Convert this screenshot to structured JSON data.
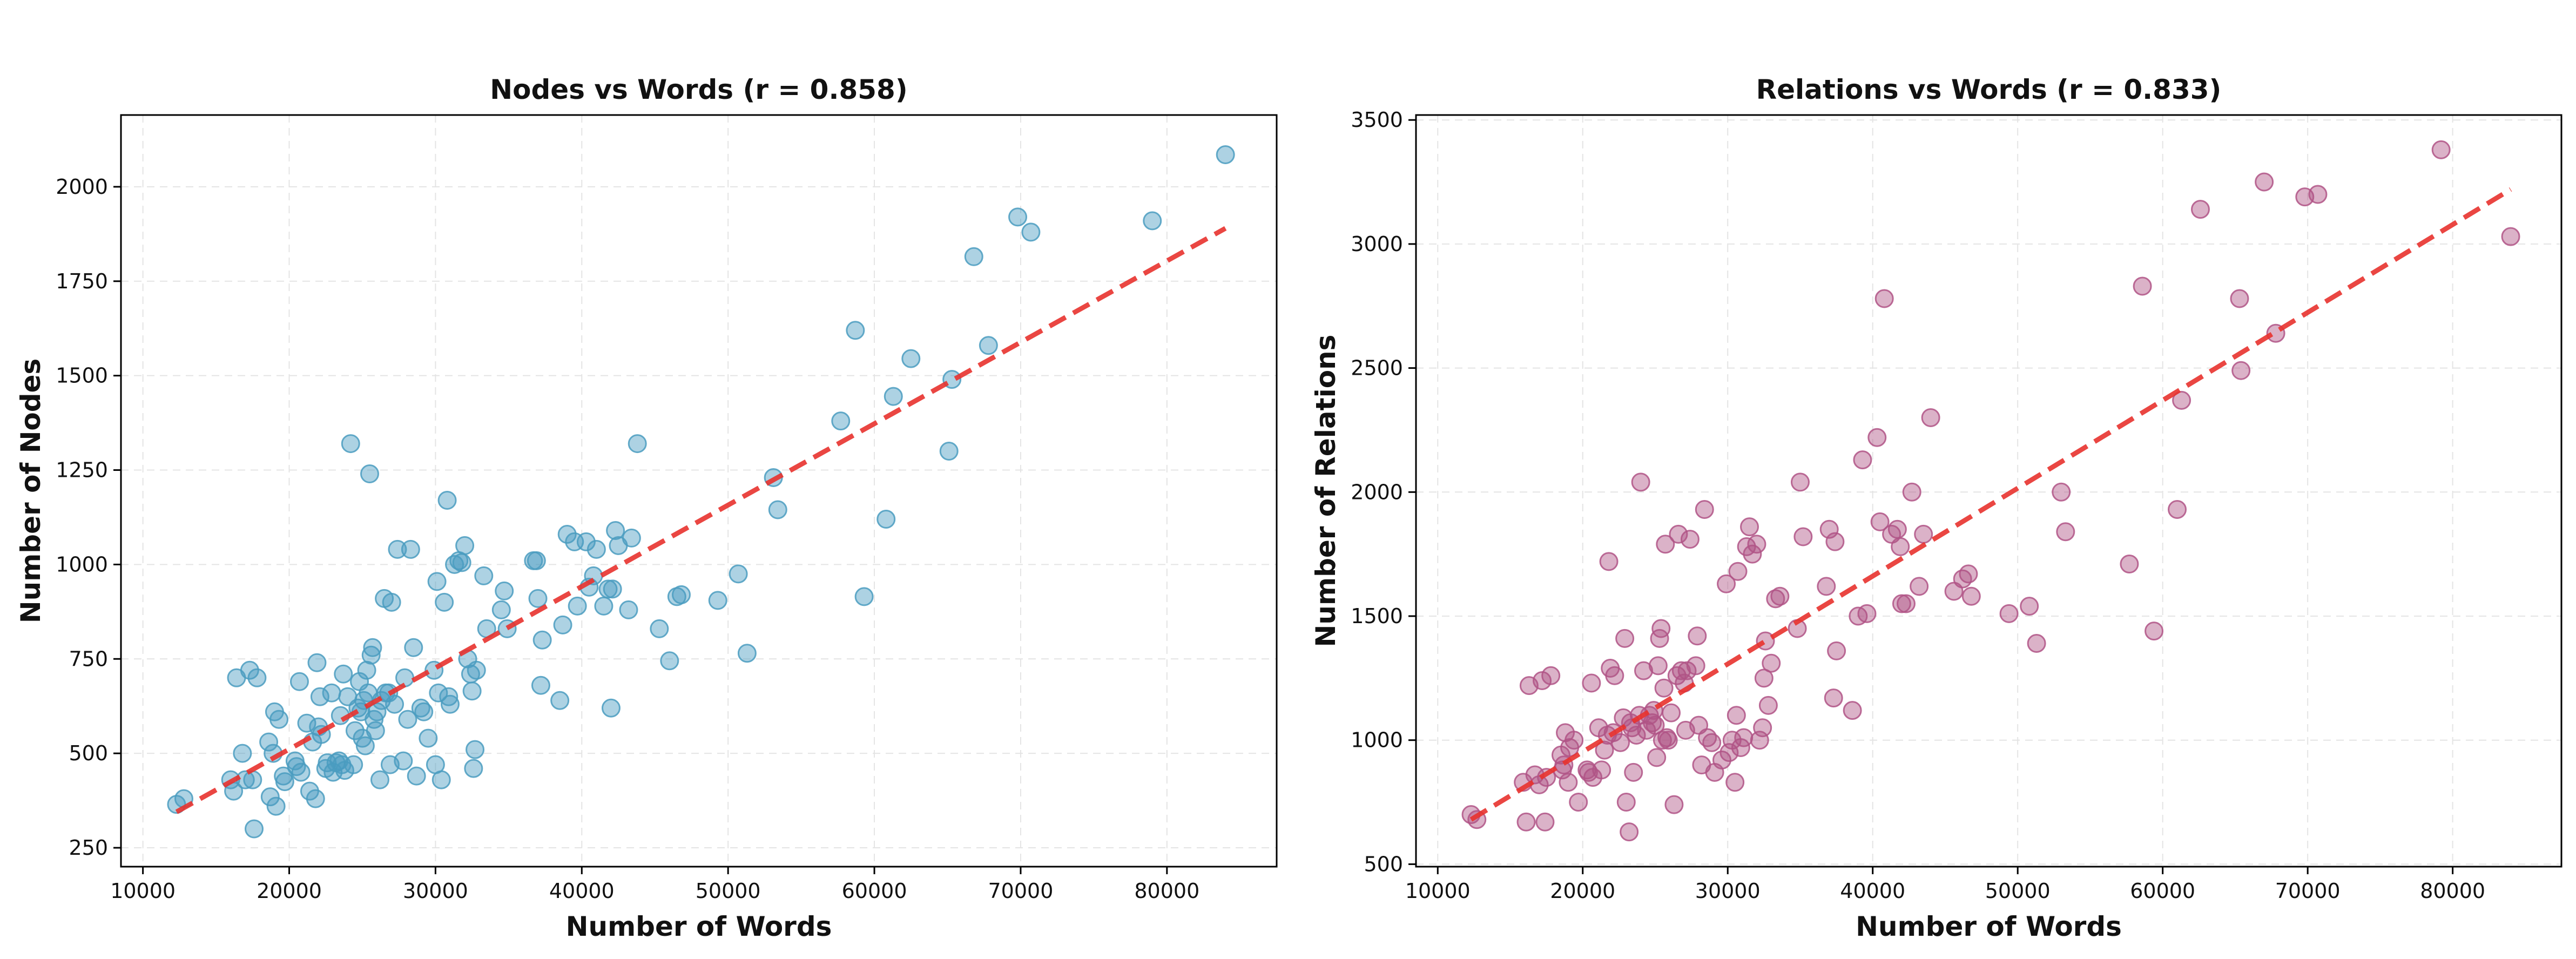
{
  "colors": {
    "nodes_point": "#4a9cc0",
    "relations_point": "#b05486",
    "trend": "#e8322e"
  },
  "chart_data": [
    {
      "type": "scatter",
      "id": "nodes",
      "title": "Nodes vs Words (r = 0.858)",
      "xlabel": "Number of Words",
      "ylabel": "Number of Nodes",
      "xlim": [
        8500,
        87500
      ],
      "ylim": [
        200,
        2190
      ],
      "xticks": [
        10000,
        20000,
        30000,
        40000,
        50000,
        60000,
        70000,
        80000
      ],
      "yticks": [
        250,
        500,
        750,
        1000,
        1250,
        1500,
        1750,
        2000
      ],
      "xtick_labels": [
        "10000",
        "20000",
        "30000",
        "40000",
        "50000",
        "60000",
        "70000",
        "80000"
      ],
      "ytick_labels": [
        "250",
        "500",
        "750",
        "1000",
        "1250",
        "1500",
        "1750",
        "2000"
      ],
      "grid": true,
      "trendline": [
        [
          12300,
          345
        ],
        [
          84000,
          1890
        ]
      ],
      "points": [
        [
          12300,
          365
        ],
        [
          12800,
          380
        ],
        [
          16000,
          430
        ],
        [
          16200,
          400
        ],
        [
          16400,
          700
        ],
        [
          16800,
          500
        ],
        [
          17000,
          430
        ],
        [
          17300,
          720
        ],
        [
          17600,
          300
        ],
        [
          17800,
          700
        ],
        [
          17500,
          430
        ],
        [
          18600,
          530
        ],
        [
          18700,
          385
        ],
        [
          18900,
          500
        ],
        [
          19000,
          610
        ],
        [
          19100,
          360
        ],
        [
          19300,
          590
        ],
        [
          19600,
          440
        ],
        [
          19700,
          425
        ],
        [
          20400,
          480
        ],
        [
          20500,
          465
        ],
        [
          20700,
          690
        ],
        [
          20800,
          450
        ],
        [
          21200,
          580
        ],
        [
          21400,
          400
        ],
        [
          21600,
          530
        ],
        [
          21800,
          380
        ],
        [
          21900,
          740
        ],
        [
          22000,
          570
        ],
        [
          22100,
          650
        ],
        [
          22200,
          550
        ],
        [
          22500,
          460
        ],
        [
          22600,
          475
        ],
        [
          22900,
          660
        ],
        [
          23000,
          450
        ],
        [
          23200,
          475
        ],
        [
          23400,
          480
        ],
        [
          23500,
          600
        ],
        [
          23600,
          470
        ],
        [
          23700,
          710
        ],
        [
          23800,
          455
        ],
        [
          24000,
          650
        ],
        [
          24200,
          1320
        ],
        [
          24400,
          470
        ],
        [
          24500,
          560
        ],
        [
          24700,
          620
        ],
        [
          24800,
          690
        ],
        [
          24900,
          610
        ],
        [
          25000,
          540
        ],
        [
          25100,
          640
        ],
        [
          25200,
          520
        ],
        [
          25300,
          720
        ],
        [
          25400,
          660
        ],
        [
          25500,
          1240
        ],
        [
          25600,
          760
        ],
        [
          25700,
          780
        ],
        [
          25800,
          590
        ],
        [
          25900,
          560
        ],
        [
          26000,
          610
        ],
        [
          26200,
          430
        ],
        [
          26300,
          640
        ],
        [
          26500,
          910
        ],
        [
          26600,
          660
        ],
        [
          26800,
          660
        ],
        [
          26900,
          470
        ],
        [
          27000,
          900
        ],
        [
          27200,
          630
        ],
        [
          27400,
          1040
        ],
        [
          27800,
          480
        ],
        [
          27900,
          700
        ],
        [
          28100,
          590
        ],
        [
          28300,
          1040
        ],
        [
          28500,
          780
        ],
        [
          28700,
          440
        ],
        [
          29000,
          620
        ],
        [
          29200,
          610
        ],
        [
          29500,
          540
        ],
        [
          29900,
          720
        ],
        [
          30000,
          470
        ],
        [
          30100,
          955
        ],
        [
          30200,
          660
        ],
        [
          30400,
          430
        ],
        [
          30600,
          900
        ],
        [
          30800,
          1170
        ],
        [
          30900,
          650
        ],
        [
          31000,
          630
        ],
        [
          31300,
          1000
        ],
        [
          31600,
          1010
        ],
        [
          31800,
          1005
        ],
        [
          32000,
          1050
        ],
        [
          32200,
          750
        ],
        [
          32400,
          710
        ],
        [
          32500,
          665
        ],
        [
          32600,
          460
        ],
        [
          32700,
          510
        ],
        [
          32800,
          720
        ],
        [
          33300,
          970
        ],
        [
          33500,
          830
        ],
        [
          34500,
          880
        ],
        [
          34700,
          930
        ],
        [
          34900,
          830
        ],
        [
          36700,
          1010
        ],
        [
          36900,
          1010
        ],
        [
          37000,
          910
        ],
        [
          37200,
          680
        ],
        [
          37300,
          800
        ],
        [
          38500,
          640
        ],
        [
          38700,
          840
        ],
        [
          39000,
          1080
        ],
        [
          39500,
          1060
        ],
        [
          39700,
          890
        ],
        [
          40300,
          1060
        ],
        [
          40500,
          940
        ],
        [
          40800,
          970
        ],
        [
          41000,
          1040
        ],
        [
          41500,
          890
        ],
        [
          41800,
          935
        ],
        [
          42000,
          620
        ],
        [
          42100,
          935
        ],
        [
          42300,
          1090
        ],
        [
          42500,
          1050
        ],
        [
          43200,
          880
        ],
        [
          43400,
          1070
        ],
        [
          43800,
          1320
        ],
        [
          45300,
          830
        ],
        [
          46000,
          745
        ],
        [
          46500,
          915
        ],
        [
          46800,
          920
        ],
        [
          49300,
          905
        ],
        [
          50700,
          975
        ],
        [
          51300,
          765
        ],
        [
          53100,
          1230
        ],
        [
          53400,
          1145
        ],
        [
          57700,
          1380
        ],
        [
          58700,
          1620
        ],
        [
          59300,
          915
        ],
        [
          60800,
          1120
        ],
        [
          61300,
          1445
        ],
        [
          62500,
          1545
        ],
        [
          65100,
          1300
        ],
        [
          65300,
          1490
        ],
        [
          66800,
          1815
        ],
        [
          67800,
          1580
        ],
        [
          69800,
          1920
        ],
        [
          70700,
          1880
        ],
        [
          79000,
          1910
        ],
        [
          84000,
          2085
        ]
      ]
    },
    {
      "type": "scatter",
      "id": "relations",
      "title": "Relations vs Words (r = 0.833)",
      "xlabel": "Number of Words",
      "ylabel": "Number of Relations",
      "xlim": [
        8500,
        87500
      ],
      "ylim": [
        490,
        3520
      ],
      "xticks": [
        10000,
        20000,
        30000,
        40000,
        50000,
        60000,
        70000,
        80000
      ],
      "yticks": [
        500,
        1000,
        1500,
        2000,
        2500,
        3000,
        3500
      ],
      "xtick_labels": [
        "10000",
        "20000",
        "30000",
        "40000",
        "50000",
        "60000",
        "70000",
        "80000"
      ],
      "ytick_labels": [
        "500",
        "1000",
        "1500",
        "2000",
        "2500",
        "3000",
        "3500"
      ],
      "grid": true,
      "trendline": [
        [
          12300,
          680
        ],
        [
          84000,
          3220
        ]
      ],
      "points": [
        [
          12300,
          700
        ],
        [
          12700,
          680
        ],
        [
          15900,
          830
        ],
        [
          16100,
          670
        ],
        [
          16300,
          1220
        ],
        [
          16700,
          860
        ],
        [
          17000,
          820
        ],
        [
          17200,
          1240
        ],
        [
          17400,
          670
        ],
        [
          17800,
          1260
        ],
        [
          17500,
          850
        ],
        [
          18500,
          940
        ],
        [
          18600,
          880
        ],
        [
          18700,
          900
        ],
        [
          18800,
          1030
        ],
        [
          19000,
          830
        ],
        [
          19100,
          970
        ],
        [
          19400,
          1000
        ],
        [
          19700,
          750
        ],
        [
          20300,
          880
        ],
        [
          20400,
          870
        ],
        [
          20600,
          1230
        ],
        [
          20700,
          850
        ],
        [
          21100,
          1050
        ],
        [
          21300,
          880
        ],
        [
          21500,
          960
        ],
        [
          21700,
          1020
        ],
        [
          21800,
          1720
        ],
        [
          21900,
          1290
        ],
        [
          22100,
          1030
        ],
        [
          22200,
          1260
        ],
        [
          22600,
          990
        ],
        [
          22800,
          1090
        ],
        [
          22900,
          1410
        ],
        [
          23000,
          750
        ],
        [
          23200,
          630
        ],
        [
          23300,
          1070
        ],
        [
          23400,
          1050
        ],
        [
          23500,
          870
        ],
        [
          23700,
          1020
        ],
        [
          23900,
          1100
        ],
        [
          24000,
          2040
        ],
        [
          24200,
          1280
        ],
        [
          24400,
          1040
        ],
        [
          24600,
          1100
        ],
        [
          24800,
          1070
        ],
        [
          24900,
          1120
        ],
        [
          25000,
          1060
        ],
        [
          25100,
          930
        ],
        [
          25200,
          1300
        ],
        [
          25300,
          1410
        ],
        [
          25400,
          1450
        ],
        [
          25500,
          1000
        ],
        [
          25600,
          1210
        ],
        [
          25700,
          1790
        ],
        [
          25800,
          1010
        ],
        [
          25900,
          1000
        ],
        [
          26100,
          1110
        ],
        [
          26300,
          740
        ],
        [
          26500,
          1260
        ],
        [
          26600,
          1830
        ],
        [
          26800,
          1280
        ],
        [
          27000,
          1230
        ],
        [
          27100,
          1040
        ],
        [
          27200,
          1280
        ],
        [
          27400,
          1810
        ],
        [
          27800,
          1300
        ],
        [
          27900,
          1420
        ],
        [
          28000,
          1060
        ],
        [
          28200,
          900
        ],
        [
          28400,
          1930
        ],
        [
          28600,
          1010
        ],
        [
          28900,
          990
        ],
        [
          29100,
          870
        ],
        [
          29600,
          920
        ],
        [
          29900,
          1630
        ],
        [
          30100,
          950
        ],
        [
          30300,
          1000
        ],
        [
          30500,
          830
        ],
        [
          30600,
          1100
        ],
        [
          30700,
          1680
        ],
        [
          30900,
          970
        ],
        [
          31100,
          1010
        ],
        [
          31300,
          1780
        ],
        [
          31500,
          1860
        ],
        [
          31700,
          1750
        ],
        [
          32000,
          1790
        ],
        [
          32200,
          1000
        ],
        [
          32400,
          1050
        ],
        [
          32500,
          1250
        ],
        [
          32600,
          1400
        ],
        [
          32800,
          1140
        ],
        [
          33000,
          1310
        ],
        [
          33300,
          1570
        ],
        [
          33600,
          1580
        ],
        [
          34800,
          1450
        ],
        [
          35000,
          2040
        ],
        [
          35200,
          1820
        ],
        [
          36800,
          1620
        ],
        [
          37000,
          1850
        ],
        [
          37300,
          1170
        ],
        [
          37500,
          1360
        ],
        [
          37400,
          1800
        ],
        [
          38600,
          1120
        ],
        [
          39000,
          1500
        ],
        [
          39300,
          2130
        ],
        [
          39600,
          1510
        ],
        [
          40300,
          2220
        ],
        [
          40500,
          1880
        ],
        [
          40800,
          2780
        ],
        [
          41300,
          1830
        ],
        [
          41700,
          1850
        ],
        [
          41900,
          1780
        ],
        [
          42000,
          1550
        ],
        [
          42300,
          1550
        ],
        [
          42700,
          2000
        ],
        [
          43200,
          1620
        ],
        [
          43500,
          1830
        ],
        [
          44000,
          2300
        ],
        [
          45600,
          1600
        ],
        [
          46200,
          1650
        ],
        [
          46600,
          1670
        ],
        [
          46800,
          1580
        ],
        [
          49400,
          1510
        ],
        [
          50800,
          1540
        ],
        [
          51300,
          1390
        ],
        [
          53000,
          2000
        ],
        [
          53300,
          1840
        ],
        [
          57700,
          1710
        ],
        [
          58600,
          2830
        ],
        [
          59400,
          1440
        ],
        [
          61000,
          1930
        ],
        [
          61300,
          2370
        ],
        [
          62600,
          3140
        ],
        [
          65300,
          2780
        ],
        [
          65400,
          2490
        ],
        [
          67000,
          3250
        ],
        [
          67800,
          2640
        ],
        [
          69800,
          3190
        ],
        [
          70700,
          3200
        ],
        [
          79200,
          3380
        ],
        [
          84000,
          3030
        ]
      ]
    }
  ]
}
